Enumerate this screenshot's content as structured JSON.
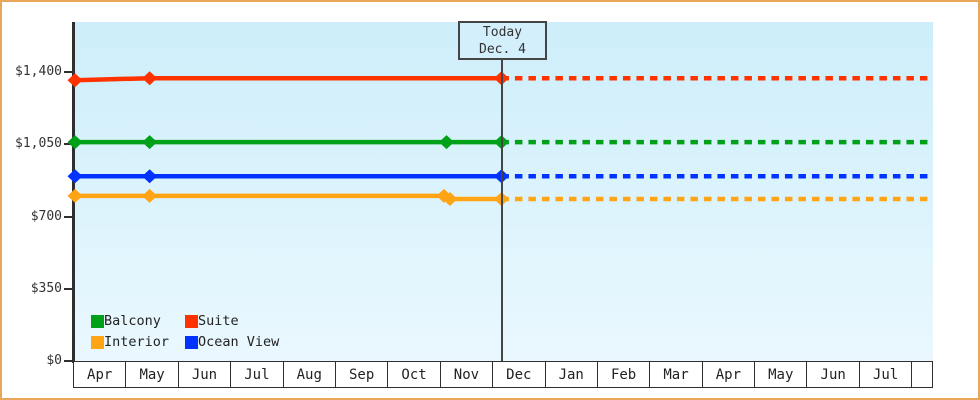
{
  "frame": {
    "background": "#ffffff",
    "border_color": "#e9a75c"
  },
  "today_marker": {
    "label": "Today",
    "date": "Dec. 4"
  },
  "legend": {
    "position": "bottom-left-inside-plot",
    "items": [
      {
        "label": "Balcony",
        "color": "#00a018"
      },
      {
        "label": "Suite",
        "color": "#ff3300"
      },
      {
        "label": "Interior",
        "color": "#ffa515"
      },
      {
        "label": "Ocean View",
        "color": "#0033ff"
      }
    ]
  },
  "chart_data": {
    "type": "line",
    "title": "",
    "grid": false,
    "plot_background_top": "#cdeefa",
    "plot_background_bottom": "#eaf8fe",
    "x_axis": {
      "labels": [
        "Apr",
        "May",
        "Jun",
        "Jul",
        "Aug",
        "Sep",
        "Oct",
        "Nov",
        "Dec",
        "Jan",
        "Feb",
        "Mar",
        "Apr",
        "May",
        "Jun",
        "Jul"
      ]
    },
    "y_axis": {
      "min": 0,
      "max": 1400,
      "ticks": [
        {
          "label": "$0",
          "value": 0
        },
        {
          "label": "$350",
          "value": 350
        },
        {
          "label": "$700",
          "value": 700
        },
        {
          "label": "$1,050",
          "value": 1050
        },
        {
          "label": "$1,400",
          "value": 1400
        }
      ]
    },
    "today": {
      "x_fraction": 0.497
    },
    "series": [
      {
        "name": "Suite",
        "color": "#ff3300",
        "points": [
          {
            "x": 0.0,
            "price": 1360
          },
          {
            "x": 0.087,
            "price": 1370
          },
          {
            "x": 0.497,
            "price": 1370
          }
        ],
        "forecast_price": 1370
      },
      {
        "name": "Balcony",
        "color": "#00a018",
        "points": [
          {
            "x": 0.0,
            "price": 1060
          },
          {
            "x": 0.087,
            "price": 1060
          },
          {
            "x": 0.433,
            "price": 1060
          },
          {
            "x": 0.497,
            "price": 1060
          }
        ],
        "forecast_price": 1060
      },
      {
        "name": "Ocean View",
        "color": "#0033ff",
        "points": [
          {
            "x": 0.0,
            "price": 895
          },
          {
            "x": 0.087,
            "price": 895
          },
          {
            "x": 0.497,
            "price": 895
          }
        ],
        "forecast_price": 895
      },
      {
        "name": "Interior",
        "color": "#ffa515",
        "points": [
          {
            "x": 0.0,
            "price": 800
          },
          {
            "x": 0.087,
            "price": 800
          },
          {
            "x": 0.43,
            "price": 800
          },
          {
            "x": 0.437,
            "price": 785
          },
          {
            "x": 0.497,
            "price": 785
          }
        ],
        "forecast_price": 785
      }
    ]
  }
}
